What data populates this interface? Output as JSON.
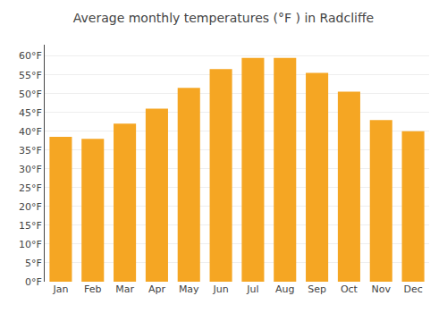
{
  "chart_data": {
    "type": "bar",
    "title": "Average monthly temperatures (°F ) in Radcliffe",
    "categories": [
      "Jan",
      "Feb",
      "Mar",
      "Apr",
      "May",
      "Jun",
      "Jul",
      "Aug",
      "Sep",
      "Oct",
      "Nov",
      "Dec"
    ],
    "values": [
      38.5,
      38.0,
      42.0,
      46.0,
      51.5,
      56.5,
      59.5,
      59.5,
      55.5,
      50.5,
      43.0,
      40.0
    ],
    "color": "#F5A623",
    "ylim": [
      0,
      63
    ],
    "yticks": [
      {
        "value": 0,
        "label": "0°F"
      },
      {
        "value": 5,
        "label": "5°F"
      },
      {
        "value": 10,
        "label": "10°F"
      },
      {
        "value": 15,
        "label": "15°F"
      },
      {
        "value": 20,
        "label": "20°F"
      },
      {
        "value": 25,
        "label": "25°F"
      },
      {
        "value": 30,
        "label": "30°F"
      },
      {
        "value": 35,
        "label": "35°F"
      },
      {
        "value": 40,
        "label": "40°F"
      },
      {
        "value": 45,
        "label": "45°F"
      },
      {
        "value": 50,
        "label": "50°F"
      },
      {
        "value": 55,
        "label": "55°F"
      },
      {
        "value": 60,
        "label": "60°F"
      }
    ],
    "grid": true
  }
}
